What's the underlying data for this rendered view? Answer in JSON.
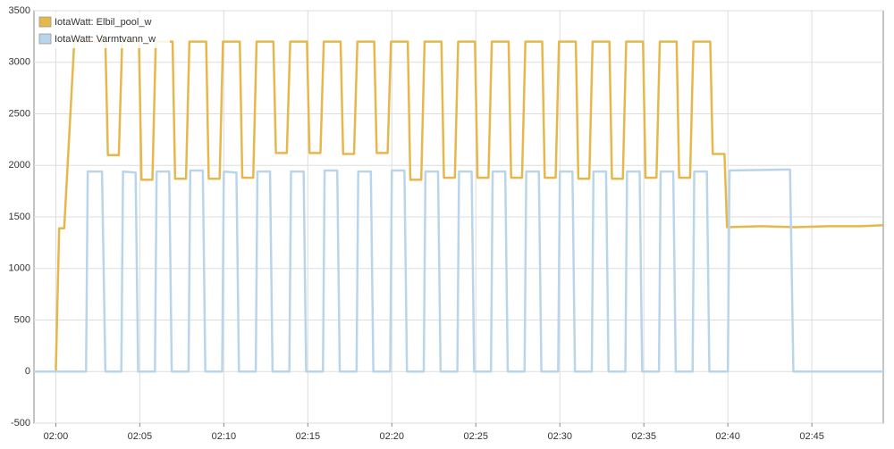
{
  "chart_data": {
    "type": "line",
    "series": [
      {
        "name": "IotaWatt: Elbil_pool_w",
        "color": "#e6b84c",
        "x": [
          118.7,
          120,
          120.2,
          120.5,
          121.1,
          122.95,
          123.1,
          123.75,
          123.95,
          124.95,
          125.1,
          125.75,
          125.95,
          126.95,
          127.1,
          127.75,
          127.95,
          128.95,
          129.1,
          129.75,
          129.95,
          130.95,
          131.1,
          131.75,
          131.95,
          132.95,
          133.1,
          133.75,
          133.95,
          134.95,
          135.1,
          135.75,
          135.95,
          136.95,
          137.1,
          137.75,
          137.95,
          138.95,
          139.1,
          139.75,
          139.95,
          140.95,
          141.1,
          141.75,
          141.95,
          142.95,
          143.1,
          143.75,
          143.95,
          144.95,
          145.1,
          145.75,
          145.95,
          146.95,
          147.1,
          147.75,
          147.95,
          148.95,
          149.1,
          149.75,
          149.95,
          150.95,
          151.1,
          151.75,
          151.95,
          152.95,
          153.1,
          153.75,
          153.95,
          154.95,
          155.1,
          155.75,
          155.95,
          156.95,
          157.1,
          157.75,
          157.95,
          158.95,
          159.1,
          159.8,
          159.95,
          162,
          164,
          166,
          168,
          169.25
        ],
        "values": [
          0,
          0,
          1390,
          1390,
          3200,
          3200,
          2100,
          2100,
          3200,
          3200,
          1860,
          1860,
          3200,
          3200,
          1870,
          1870,
          3200,
          3200,
          1870,
          1870,
          3200,
          3200,
          1880,
          1880,
          3200,
          3200,
          2120,
          2120,
          3200,
          3200,
          2120,
          2120,
          3200,
          3200,
          2110,
          2110,
          3200,
          3200,
          2120,
          2120,
          3200,
          3200,
          1860,
          1860,
          3200,
          3200,
          1880,
          1880,
          3200,
          3200,
          1880,
          1880,
          3200,
          3200,
          1880,
          1880,
          3200,
          3200,
          1880,
          1880,
          3200,
          3200,
          1870,
          1870,
          3200,
          3200,
          1870,
          1870,
          3200,
          3200,
          1880,
          1880,
          3200,
          3200,
          1880,
          1880,
          3200,
          3200,
          2110,
          2110,
          1400,
          1410,
          1400,
          1410,
          1410,
          1420
        ]
      },
      {
        "name": "IotaWatt: Varmtvann_w",
        "color": "#b9d5ec",
        "x": [
          118.7,
          121.8,
          121.9,
          122.75,
          122.95,
          123.9,
          124,
          124.75,
          124.9,
          125.9,
          126,
          126.75,
          126.9,
          127.9,
          128,
          128.75,
          128.9,
          129.9,
          130,
          130.75,
          130.9,
          131.9,
          132,
          132.75,
          132.9,
          133.9,
          134,
          134.75,
          134.9,
          135.9,
          136,
          136.75,
          136.9,
          137.9,
          138,
          138.75,
          138.9,
          139.9,
          140,
          140.75,
          140.9,
          141.9,
          142,
          142.75,
          142.9,
          143.9,
          144,
          144.75,
          144.9,
          145.9,
          146,
          146.75,
          146.9,
          147.9,
          148,
          148.75,
          148.9,
          149.9,
          150,
          150.75,
          150.9,
          151.9,
          152,
          152.75,
          152.9,
          153.9,
          154,
          154.75,
          154.9,
          155.9,
          156,
          156.75,
          156.9,
          157.9,
          158,
          158.75,
          158.9,
          160,
          160.1,
          163.7,
          163.9,
          169.25
        ],
        "values": [
          0,
          0,
          1940,
          1940,
          0,
          0,
          1940,
          1930,
          0,
          0,
          1940,
          1940,
          0,
          0,
          1950,
          1950,
          0,
          0,
          1940,
          1930,
          0,
          0,
          1940,
          1940,
          0,
          0,
          1940,
          1940,
          0,
          0,
          1950,
          1950,
          0,
          0,
          1940,
          1940,
          0,
          0,
          1950,
          1950,
          0,
          0,
          1940,
          1940,
          0,
          0,
          1940,
          1940,
          0,
          0,
          1940,
          1940,
          0,
          0,
          1940,
          1940,
          0,
          0,
          1940,
          1940,
          0,
          0,
          1940,
          1940,
          0,
          0,
          1940,
          1940,
          0,
          0,
          1940,
          1940,
          0,
          0,
          1940,
          1940,
          0,
          0,
          1950,
          1960,
          0,
          0
        ]
      }
    ],
    "xlim": [
      118.7,
      169.25
    ],
    "xticks": [
      {
        "value": 120,
        "label": "02:00"
      },
      {
        "value": 125,
        "label": "02:05"
      },
      {
        "value": 130,
        "label": "02:10"
      },
      {
        "value": 135,
        "label": "02:15"
      },
      {
        "value": 140,
        "label": "02:20"
      },
      {
        "value": 145,
        "label": "02:25"
      },
      {
        "value": 150,
        "label": "02:30"
      },
      {
        "value": 155,
        "label": "02:35"
      },
      {
        "value": 160,
        "label": "02:40"
      },
      {
        "value": 165,
        "label": "02:45"
      }
    ],
    "ylim": [
      -500,
      3500
    ],
    "yticks": [
      -500,
      0,
      500,
      1000,
      1500,
      2000,
      2500,
      3000,
      3500
    ],
    "grid": true,
    "legend": "top-left"
  }
}
